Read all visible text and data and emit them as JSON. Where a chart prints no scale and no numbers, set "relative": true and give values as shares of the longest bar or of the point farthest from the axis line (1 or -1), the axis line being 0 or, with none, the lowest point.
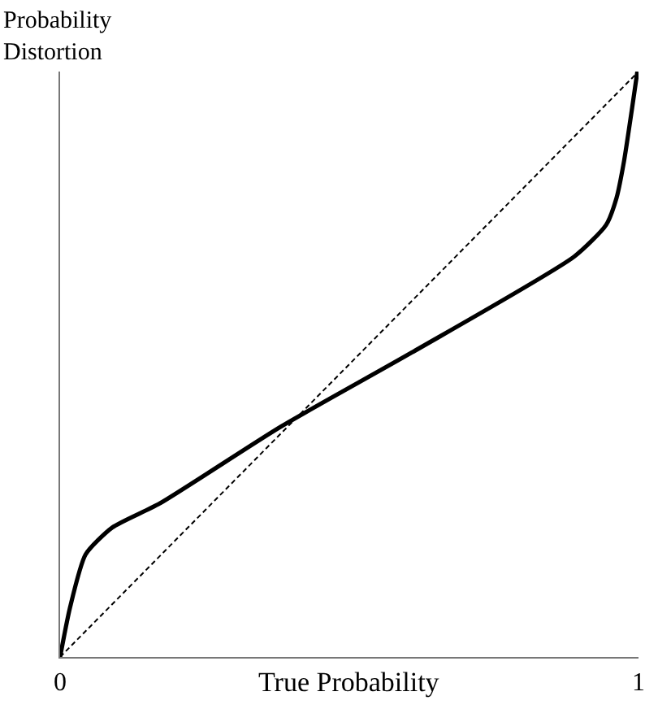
{
  "chart_data": {
    "type": "line",
    "xlabel": "True Probability",
    "ylabel": "Probability\nDistortion",
    "relative": true,
    "xlim": [
      0,
      1
    ],
    "xticks": [
      0,
      1
    ],
    "tick_labels": "x",
    "marker": "none",
    "series": [
      {
        "color": "#000000",
        "line_style": "solid",
        "x": [
          0,
          0.017,
          0.044,
          0.09,
          0.172,
          0.381,
          0.608,
          0.889,
          0.944,
          0.962,
          0.975,
          0.989,
          0.998
        ],
        "values": [
          0,
          0.084,
          0.175,
          0.221,
          0.262,
          0.393,
          0.52,
          0.684,
          0.738,
          0.784,
          0.847,
          0.938,
          1.0
        ]
      },
      {
        "color": "#000000",
        "line_style": "dashed",
        "x": [
          0,
          0.995
        ],
        "values": [
          0,
          0.995
        ]
      }
    ]
  }
}
